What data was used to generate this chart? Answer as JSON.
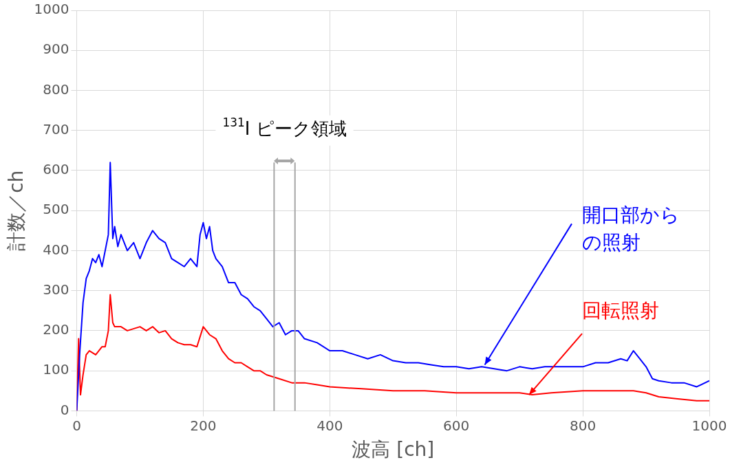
{
  "chart_data": {
    "type": "line",
    "xlabel": "波高 [ch]",
    "ylabel": "計数／ch",
    "xlim": [
      0,
      1000
    ],
    "xticks": [
      0,
      200,
      400,
      600,
      800,
      1000
    ],
    "ylim": [
      0,
      1000
    ],
    "yticks": [
      0,
      100,
      200,
      300,
      400,
      500,
      600,
      700,
      800,
      900,
      1000
    ],
    "grid": true,
    "legend": false,
    "marker": "none",
    "series": [
      {
        "color": "#0000ff",
        "x": [
          0,
          5,
          10,
          15,
          20,
          25,
          30,
          35,
          40,
          45,
          50,
          53,
          57,
          60,
          65,
          70,
          80,
          90,
          100,
          110,
          120,
          130,
          140,
          150,
          160,
          170,
          180,
          190,
          195,
          200,
          205,
          210,
          215,
          220,
          230,
          240,
          250,
          260,
          270,
          280,
          290,
          300,
          310,
          320,
          330,
          340,
          350,
          360,
          380,
          400,
          420,
          440,
          460,
          480,
          500,
          520,
          540,
          560,
          580,
          600,
          620,
          640,
          660,
          680,
          700,
          720,
          740,
          760,
          780,
          800,
          820,
          840,
          860,
          870,
          880,
          890,
          900,
          910,
          920,
          940,
          960,
          980,
          1000
        ],
        "values": [
          0,
          150,
          270,
          330,
          350,
          380,
          370,
          390,
          360,
          400,
          440,
          620,
          430,
          460,
          410,
          440,
          400,
          420,
          380,
          420,
          450,
          430,
          420,
          380,
          370,
          360,
          380,
          360,
          440,
          470,
          430,
          460,
          400,
          380,
          360,
          320,
          320,
          290,
          280,
          260,
          250,
          230,
          210,
          220,
          190,
          200,
          200,
          180,
          170,
          150,
          150,
          140,
          130,
          140,
          125,
          120,
          120,
          115,
          110,
          110,
          105,
          110,
          105,
          100,
          110,
          105,
          110,
          110,
          110,
          110,
          120,
          120,
          130,
          125,
          150,
          130,
          110,
          80,
          75,
          70,
          70,
          60,
          75
        ]
      },
      {
        "color": "#ff0000",
        "x": [
          0,
          3,
          6,
          10,
          15,
          20,
          30,
          40,
          45,
          50,
          53,
          57,
          60,
          70,
          80,
          100,
          110,
          120,
          130,
          140,
          150,
          160,
          170,
          180,
          190,
          200,
          210,
          220,
          230,
          240,
          250,
          260,
          270,
          280,
          290,
          300,
          320,
          340,
          360,
          380,
          400,
          450,
          500,
          550,
          600,
          650,
          700,
          720,
          750,
          800,
          850,
          880,
          900,
          920,
          950,
          980,
          1000
        ],
        "values": [
          0,
          180,
          40,
          90,
          140,
          150,
          140,
          160,
          160,
          200,
          290,
          220,
          210,
          210,
          200,
          210,
          200,
          210,
          195,
          200,
          180,
          170,
          165,
          165,
          160,
          210,
          190,
          180,
          150,
          130,
          120,
          120,
          110,
          100,
          100,
          90,
          80,
          70,
          70,
          65,
          60,
          55,
          50,
          50,
          45,
          45,
          45,
          40,
          45,
          50,
          50,
          50,
          45,
          35,
          30,
          25,
          25
        ]
      }
    ],
    "ref_lines": [
      {
        "axis": "x",
        "value": 312,
        "color": "#a6a6a6"
      },
      {
        "axis": "x",
        "value": 345,
        "color": "#a6a6a6"
      }
    ],
    "annotations": [
      {
        "text": "開口部からの照射",
        "x": 645,
        "y": 115
      },
      {
        "text": "回転照射",
        "x": 715,
        "y": 40
      },
      "$^{131}$I ピーク領域"
    ]
  }
}
